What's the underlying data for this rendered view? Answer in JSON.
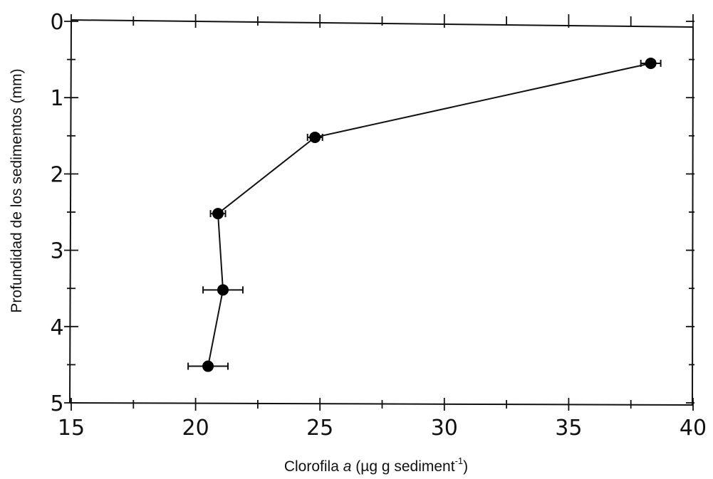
{
  "chart_data": {
    "type": "line",
    "title": "",
    "xlabel_prefix": "Clorofila ",
    "xlabel_var": "a",
    "xlabel_unit": " (µg g sediment",
    "xlabel_exp": "-1",
    "xlabel_close": ")",
    "ylabel": "Profundidad de los sedimentos (mm)",
    "xlim": [
      15,
      40
    ],
    "ylim": [
      0,
      5
    ],
    "y_inverted": true,
    "x_axis_position": "top",
    "x_ticks": [
      15,
      20,
      25,
      30,
      35,
      40
    ],
    "x_tick_labels": [
      "15",
      "20",
      "25",
      "30",
      "35",
      "40"
    ],
    "y_ticks": [
      0,
      1,
      2,
      3,
      4,
      5
    ],
    "y_tick_labels": [
      "0",
      "1",
      "2",
      "3",
      "4",
      "5"
    ],
    "grid": false,
    "series": [
      {
        "x": [
          38.3,
          24.8,
          20.9,
          21.1,
          20.5
        ],
        "y": [
          0.55,
          1.52,
          2.52,
          3.52,
          4.52
        ],
        "x_error": [
          0.4,
          0.3,
          0.3,
          0.8,
          0.8
        ]
      }
    ],
    "colors": {
      "line": "#111111",
      "marker": "#000000",
      "axis": "#111111"
    }
  }
}
